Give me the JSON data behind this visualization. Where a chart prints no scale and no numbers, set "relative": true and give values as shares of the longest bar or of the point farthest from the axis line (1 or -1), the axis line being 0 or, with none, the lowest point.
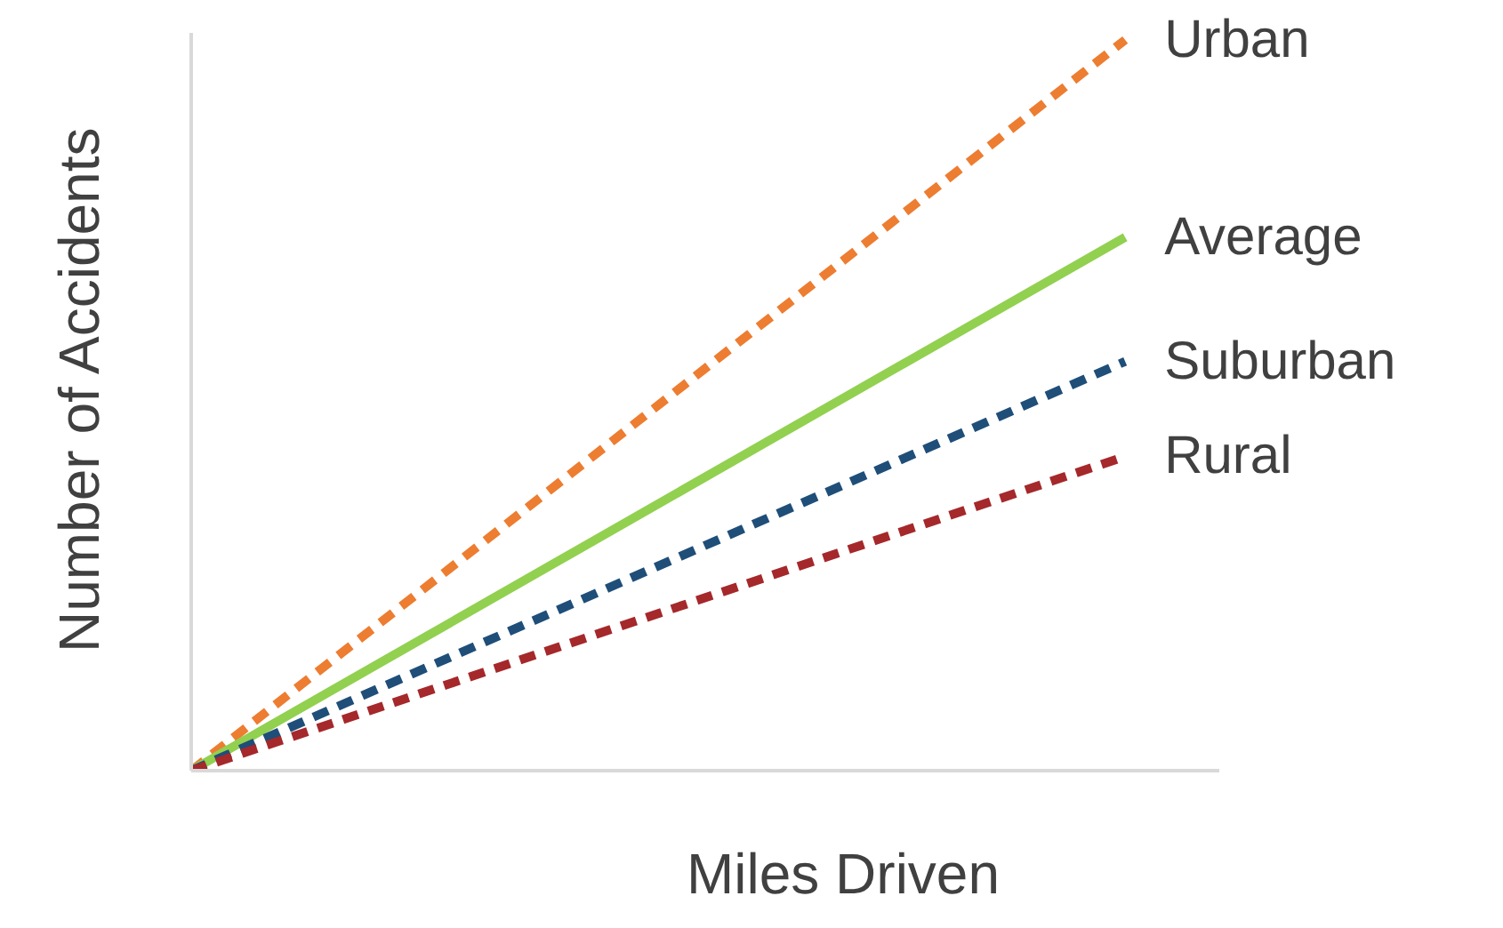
{
  "chart_data": {
    "type": "line",
    "xlabel": "Miles Driven",
    "ylabel": "Number of Accidents",
    "categories": [
      null,
      null
    ],
    "relative": true,
    "series": [
      {
        "name": "Urban",
        "color": "#ed7d31",
        "values": [
          0,
          1
        ],
        "line_style": "dashed"
      },
      {
        "name": "Average",
        "color": "#92d050",
        "values": [
          0,
          0.73
        ],
        "line_style": "solid"
      },
      {
        "name": "Suburban",
        "color": "#1f4e79",
        "values": [
          0,
          0.56
        ],
        "line_style": "dashed"
      },
      {
        "name": "Rural",
        "color": "#a5282b",
        "values": [
          0,
          0.43
        ],
        "line_style": "dashed"
      }
    ]
  }
}
